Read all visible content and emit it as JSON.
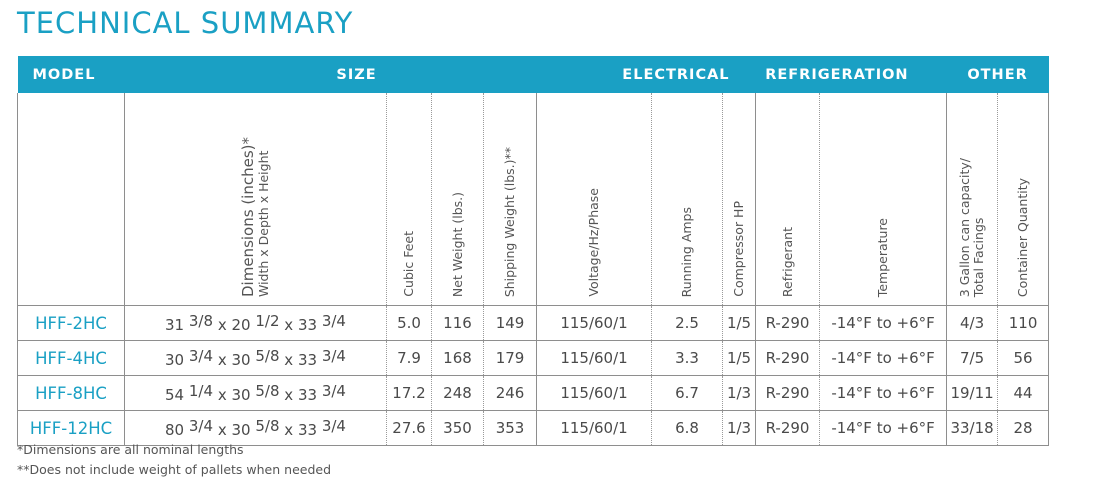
{
  "title": "TECHNICAL SUMMARY",
  "groups": {
    "model": "MODEL",
    "size": "SIZE",
    "electrical": "ELECTRICAL",
    "refrigeration": "REFRIGERATION",
    "other": "OTHER"
  },
  "subheaders": {
    "dimensions": "Dimensions (inches)*",
    "dimensions_sub": "Width x Depth x Height",
    "cubic_feet": "Cubic Feet",
    "net_weight": "Net Weight (lbs.)",
    "shipping_weight": "Shipping Weight (lbs.)**",
    "voltage": "Voltage/Hz/Phase",
    "running_amps": "Running Amps",
    "compressor_hp": "Compressor HP",
    "refrigerant": "Refrigerant",
    "temperature": "Temperature",
    "capacity_line1": "3 Gallon can capacity/",
    "capacity_line2": "Total Facings",
    "container_quantity": "Container Quantity"
  },
  "rows": [
    {
      "model": "HFF-2HC",
      "w": "31",
      "wf": "3/8",
      "d": "20",
      "df": "1/2",
      "h": "33",
      "hf": "3/4",
      "x": "x",
      "cubic_feet": "5.0",
      "net_weight": "116",
      "shipping_weight": "149",
      "voltage": "115/60/1",
      "running_amps": "2.5",
      "compressor_hp": "1/5",
      "refrigerant": "R-290",
      "temperature": "-14°F to +6°F",
      "capacity": "4/3",
      "container_quantity": "110"
    },
    {
      "model": "HFF-4HC",
      "w": "30",
      "wf": "3/4",
      "d": "30",
      "df": "5/8",
      "h": "33",
      "hf": "3/4",
      "x": "x",
      "cubic_feet": "7.9",
      "net_weight": "168",
      "shipping_weight": "179",
      "voltage": "115/60/1",
      "running_amps": "3.3",
      "compressor_hp": "1/5",
      "refrigerant": "R-290",
      "temperature": "-14°F to +6°F",
      "capacity": "7/5",
      "container_quantity": "56"
    },
    {
      "model": "HFF-8HC",
      "w": "54",
      "wf": "1/4",
      "d": "30",
      "df": "5/8",
      "h": "33",
      "hf": "3/4",
      "x": "x",
      "cubic_feet": "17.2",
      "net_weight": "248",
      "shipping_weight": "246",
      "voltage": "115/60/1",
      "running_amps": "6.7",
      "compressor_hp": "1/3",
      "refrigerant": "R-290",
      "temperature": "-14°F to +6°F",
      "capacity": "19/11",
      "container_quantity": "44"
    },
    {
      "model": "HFF-12HC",
      "w": "80",
      "wf": "3/4",
      "d": "30",
      "df": "5/8",
      "h": "33",
      "hf": "3/4",
      "x": "x",
      "cubic_feet": "27.6",
      "net_weight": "350",
      "shipping_weight": "353",
      "voltage": "115/60/1",
      "running_amps": "6.8",
      "compressor_hp": "1/3",
      "refrigerant": "R-290",
      "temperature": "-14°F to +6°F",
      "capacity": "33/18",
      "container_quantity": "28"
    }
  ],
  "footnotes": [
    "*Dimensions are all nominal lengths",
    "**Does not include weight of pallets when needed"
  ],
  "colors": {
    "accent": "#1aa0c4",
    "header_text": "#ffffff",
    "body_text": "#4a4a4a"
  }
}
